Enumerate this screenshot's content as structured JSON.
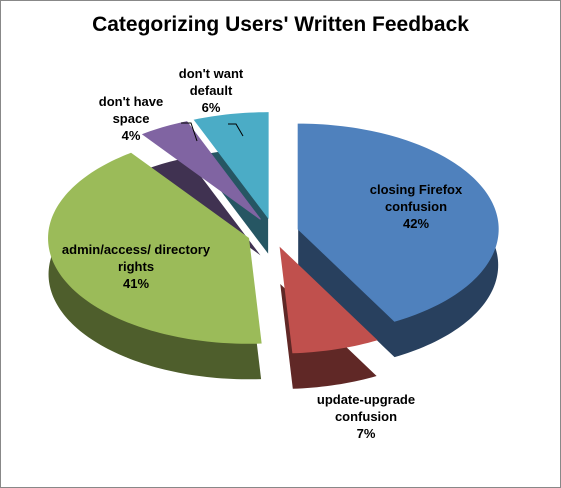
{
  "chart_data": {
    "type": "pie",
    "title": "Categorizing Users' Written Feedback",
    "categories": [
      "closing Firefox confusion",
      "update-upgrade confusion",
      "admin/access/ directory rights",
      "don't have space",
      "don't want default"
    ],
    "values": [
      42,
      7,
      41,
      4,
      6
    ],
    "value_labels": [
      "42%",
      "7%",
      "41%",
      "4%",
      "6%"
    ],
    "colors": [
      "#4f81bd",
      "#c0504d",
      "#9bbb59",
      "#8064a2",
      "#4bacc6"
    ]
  }
}
